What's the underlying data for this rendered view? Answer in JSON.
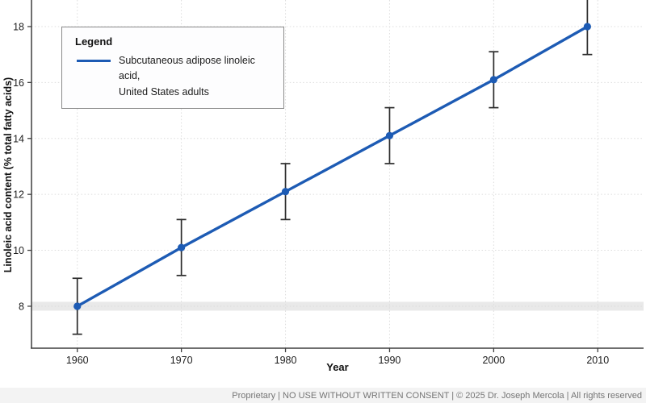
{
  "page": {
    "background": "#ffffff"
  },
  "legend": {
    "title": "Legend",
    "entry_line1": "Subcutaneous adipose linoleic acid,",
    "entry_line2": "United States adults"
  },
  "footer": {
    "text": "Proprietary | NO USE WITHOUT WRITTEN CONSENT | © 2025 Dr. Joseph Mercola | All rights reserved"
  },
  "chart_data": {
    "type": "line",
    "title": "",
    "xlabel": "Year",
    "ylabel": "Linoleic acid content (% total fatty acids)",
    "x": [
      1960,
      1970,
      1980,
      1990,
      2000,
      2009
    ],
    "series": [
      {
        "name": "Subcutaneous adipose linoleic acid, United States adults",
        "values": [
          8.0,
          10.1,
          12.1,
          14.1,
          16.1,
          18.0
        ],
        "error_bars": [
          1.0,
          1.0,
          1.0,
          1.0,
          1.0,
          1.0
        ],
        "color": "#1d5bb4"
      }
    ],
    "x_ticks": [
      1960,
      1970,
      1980,
      1990,
      2000,
      2010
    ],
    "y_ticks": [
      8,
      10,
      12,
      14,
      16,
      18
    ],
    "xlim": [
      1955.6,
      2014.4
    ],
    "ylim": [
      6.5,
      18.95
    ],
    "grid": "dotted-both",
    "grid_color": "#dcdcdc",
    "axis_color": "#3f3f3f",
    "tick_label_color": "#1c1c1c",
    "error_bar_color": "#2b2b2b",
    "reference_band": {
      "value": 8.0,
      "color": "#e9e9e9"
    },
    "legend_position": "top-left"
  }
}
